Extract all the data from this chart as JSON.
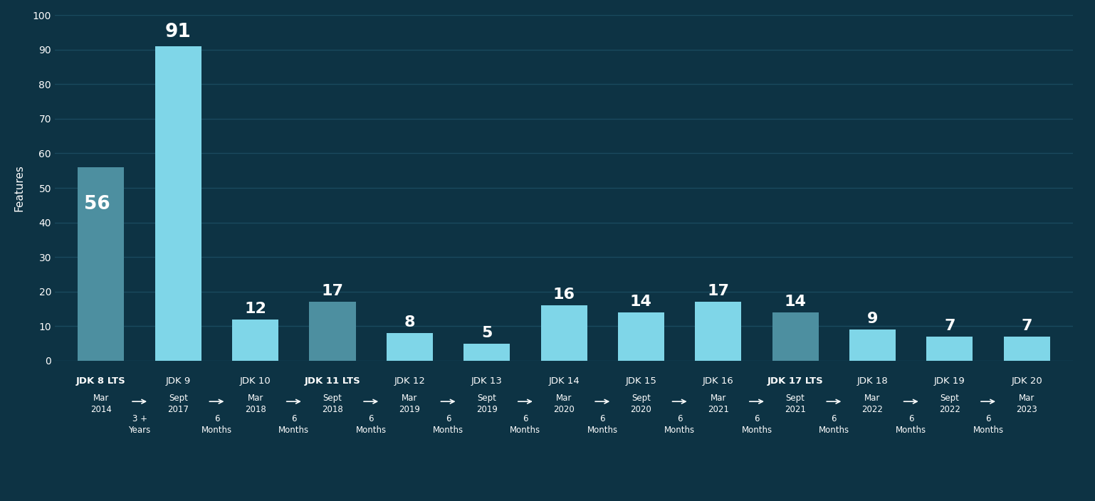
{
  "categories": [
    "JDK 8 LTS",
    "JDK 9",
    "JDK 10",
    "JDK 11 LTS",
    "JDK 12",
    "JDK 13",
    "JDK 14",
    "JDK 15",
    "JDK 16",
    "JDK 17 LTS",
    "JDK 18",
    "JDK 19",
    "JDK 20"
  ],
  "values": [
    56,
    91,
    12,
    17,
    8,
    5,
    16,
    14,
    17,
    14,
    9,
    7,
    7
  ],
  "lts_indices": [
    0,
    3,
    9
  ],
  "bar_color_lts": "#4d8fa0",
  "bar_color_normal": "#7fd6e8",
  "background_color": "#0d3344",
  "grid_color": "#1a4a5e",
  "text_color": "#ffffff",
  "ylabel": "Features",
  "ylim": [
    0,
    100
  ],
  "yticks": [
    0,
    10,
    20,
    30,
    40,
    50,
    60,
    70,
    80,
    90,
    100
  ],
  "dates": [
    "Mar\n2014",
    "Sept\n2017",
    "Mar\n2018",
    "Sept\n2018",
    "Mar\n2019",
    "Sept\n2019",
    "Mar\n2020",
    "Sept\n2020",
    "Mar\n2021",
    "Sept\n2021",
    "Mar\n2022",
    "Sept\n2022",
    "Mar\n2023"
  ],
  "durations": [
    "3 +\nYears",
    "6\nMonths",
    "6\nMonths",
    "6\nMonths",
    "6\nMonths",
    "6\nMonths",
    "6\nMonths",
    "6\nMonths",
    "6\nMonths",
    "6\nMonths",
    "6\nMonths",
    "6\nMonths"
  ],
  "title_fontsize": 13,
  "label_fontsize": 11,
  "value_fontsize": 14
}
